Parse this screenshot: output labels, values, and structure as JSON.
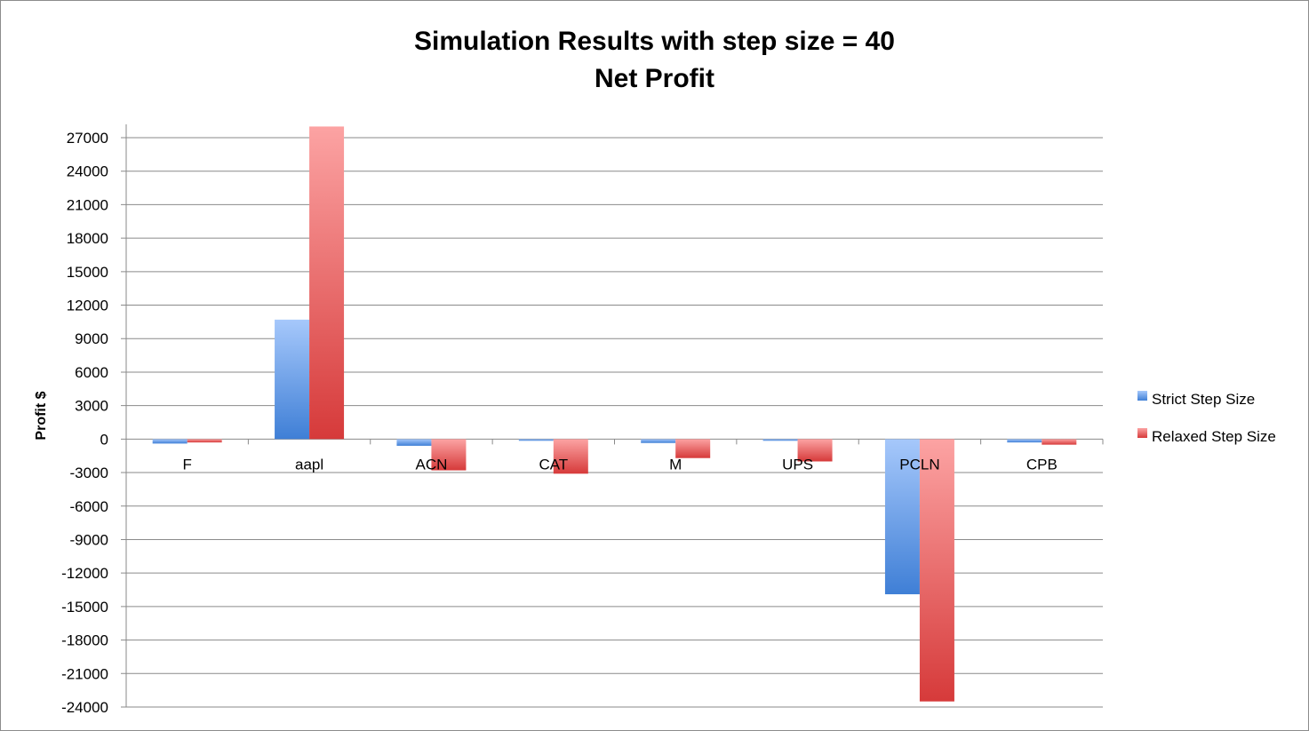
{
  "chart_data": {
    "type": "bar",
    "title_lines": [
      "Simulation Results with step size = 40",
      "Net Profit"
    ],
    "xlabel": "",
    "ylabel": "Profit $",
    "ylim": [
      -24000,
      27000
    ],
    "yticks": [
      27000,
      24000,
      21000,
      18000,
      15000,
      12000,
      9000,
      6000,
      3000,
      0,
      -3000,
      -6000,
      -9000,
      -12000,
      -15000,
      -18000,
      -21000,
      -24000
    ],
    "categories": [
      "F",
      "aapl",
      "ACN",
      "CAT",
      "M",
      "UPS",
      "PCLN",
      "CPB"
    ],
    "series": [
      {
        "name": "Strict Step Size",
        "color": "#3f7fd6",
        "color_light": "#a6c8fb",
        "values": [
          -400,
          10700,
          -600,
          -150,
          -350,
          -150,
          -13900,
          -300
        ]
      },
      {
        "name": "Relaxed Step Size",
        "color": "#d63a3a",
        "color_light": "#fca3a3",
        "values": [
          -300,
          28000,
          -2800,
          -3100,
          -1700,
          -2000,
          -23500,
          -500
        ]
      }
    ],
    "grid": true,
    "legend_position": "right"
  }
}
